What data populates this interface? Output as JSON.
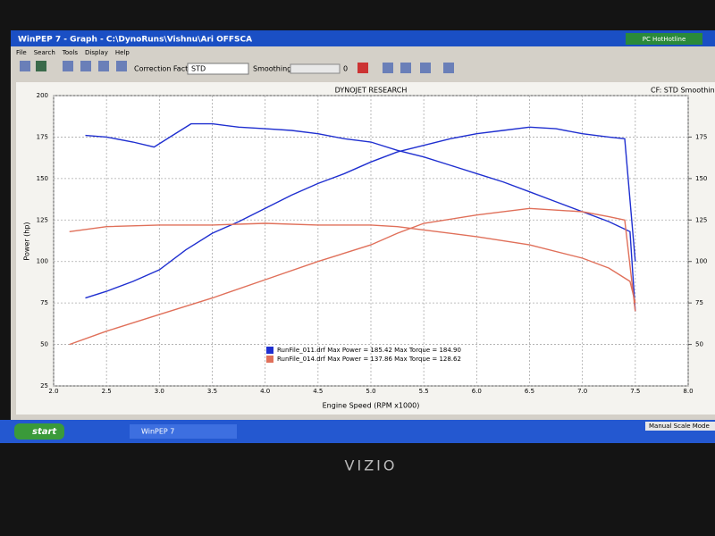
{
  "window": {
    "title": "WinPEP 7 - Graph - C:\\DynoRuns\\Vishnu\\Ari OFFSCA",
    "menu": [
      "File",
      "Search",
      "Tools",
      "Display",
      "Help"
    ],
    "correction_label": "Correction Factor:",
    "correction_value": "STD",
    "smoothing_label": "Smoothing:",
    "smoothing_value": "0",
    "badge": "PC HotHotline"
  },
  "taskbar": {
    "start": "start",
    "task": "WinPEP 7",
    "status": "Manual Scale Mode"
  },
  "bezel_brand": "VIZIO",
  "chart_data": {
    "type": "line",
    "title": "DYNOJET RESEARCH",
    "subtitle": "CF: STD  Smoothing",
    "x_label": "Engine Speed (RPM x1000)",
    "y_label": "Power (hp)",
    "xlim": [
      2,
      8
    ],
    "xticks": [
      {
        "value": 2,
        "label": "2.0"
      },
      2.5,
      {
        "value": 3,
        "label": "3.0"
      },
      3.5,
      {
        "value": 4,
        "label": "4.0"
      },
      4.5,
      {
        "value": 5,
        "label": "5.0"
      },
      5.5,
      {
        "value": 6,
        "label": "6.0"
      },
      6.5,
      {
        "value": 7,
        "label": "7.0"
      },
      7.5,
      {
        "value": 8,
        "label": "8.0"
      }
    ],
    "ylim": [
      25,
      200
    ],
    "yticks": [
      25,
      50,
      75,
      100,
      125,
      150,
      175,
      200
    ],
    "y2lim": [
      25,
      200
    ],
    "y2ticks": [
      50,
      75,
      100,
      125,
      150,
      175
    ],
    "grid": true,
    "legend": [
      {
        "color": "#1f2fd0",
        "text": "RunFile_011.drf Max Power = 185.42 Max Torque = 184.90"
      },
      {
        "color": "#e0705a",
        "text": "RunFile_014.drf Max Power = 137.86 Max Torque = 128.62"
      }
    ],
    "series": [
      {
        "color": "#1f2fd0",
        "x": [
          2.3,
          2.5,
          2.75,
          3.0,
          3.25,
          3.5,
          3.75,
          4.0,
          4.25,
          4.5,
          4.75,
          5.0,
          5.25,
          5.5,
          5.75,
          6.0,
          6.25,
          6.5,
          6.75,
          7.0,
          7.25,
          7.4,
          7.5
        ],
        "values": [
          78,
          82,
          88,
          95,
          107,
          117,
          124,
          132,
          140,
          147,
          153,
          160,
          166,
          170,
          174,
          177,
          179,
          181,
          180,
          177,
          175,
          174,
          100
        ]
      },
      {
        "color": "#1f2fd0",
        "axis": "y2",
        "x": [
          2.3,
          2.5,
          2.75,
          2.95,
          3.1,
          3.3,
          3.5,
          3.75,
          4.0,
          4.25,
          4.5,
          4.75,
          5.0,
          5.25,
          5.5,
          5.75,
          6.0,
          6.25,
          6.5,
          6.75,
          7.0,
          7.25,
          7.45,
          7.5
        ],
        "values": [
          176,
          175,
          172,
          169,
          175,
          183,
          183,
          181,
          180,
          179,
          177,
          174,
          172,
          167,
          163,
          158,
          153,
          148,
          142,
          136,
          130,
          124,
          118,
          70
        ]
      },
      {
        "color": "#e0705a",
        "x": [
          2.15,
          2.5,
          3.0,
          3.5,
          4.0,
          4.5,
          5.0,
          5.25,
          5.5,
          6.0,
          6.5,
          7.0,
          7.25,
          7.4,
          7.5
        ],
        "values": [
          50,
          58,
          68,
          78,
          89,
          100,
          110,
          117,
          123,
          128,
          132,
          130,
          127,
          125,
          70
        ]
      },
      {
        "color": "#e0705a",
        "axis": "y2",
        "x": [
          2.15,
          2.5,
          3.0,
          3.5,
          4.0,
          4.5,
          5.0,
          5.25,
          5.5,
          6.0,
          6.5,
          7.0,
          7.25,
          7.45,
          7.5
        ],
        "values": [
          118,
          121,
          122,
          122,
          123,
          122,
          122,
          121,
          119,
          115,
          110,
          102,
          96,
          88,
          75
        ]
      }
    ]
  }
}
